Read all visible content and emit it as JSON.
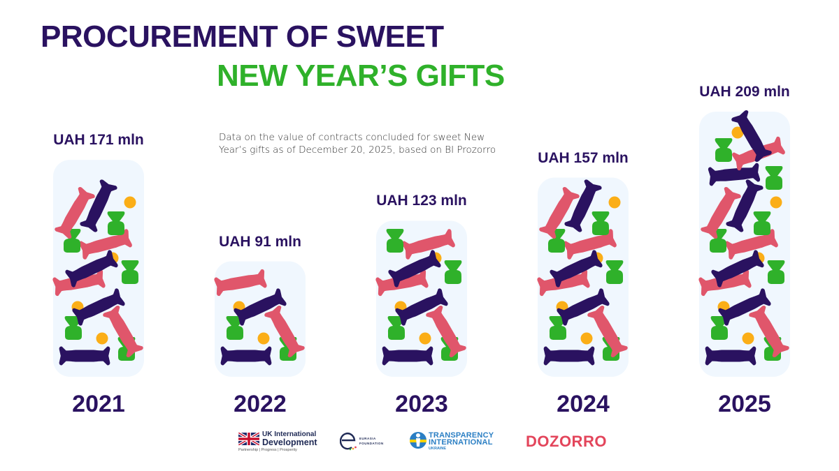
{
  "header": {
    "title_line1": "PROCUREMENT OF SWEET",
    "title_line2": "NEW YEAR’S GIFTS",
    "subtitle_line1": "Data on the value of contracts concluded for sweet New",
    "subtitle_line2": "Year’s gifts as of December 20, 2025, based on BI Prozorro"
  },
  "colors": {
    "title_primary": "#2a1260",
    "title_accent": "#2fb12a",
    "box_background": "#f0f7fe",
    "candy_purple": "#2a1260",
    "candy_pink": "#e0566b",
    "candy_green": "#2fb12a",
    "candy_orange": "#fbae17"
  },
  "chart_data": {
    "type": "bar",
    "title": "Procurement of sweet New Year’s gifts",
    "subtitle": "Data on the value of contracts concluded for sweet New Year’s gifts as of December 20, 2025, based on BI Prozorro",
    "xlabel": "",
    "ylabel": "UAH mln",
    "categories": [
      "2021",
      "2022",
      "2023",
      "2024",
      "2025"
    ],
    "values": [
      171,
      91,
      123,
      157,
      209
    ],
    "data_labels": [
      "UAH 171 mln",
      "UAH 91 mln",
      "UAH 123 mln",
      "UAH 157 mln",
      "UAH 209 mln"
    ],
    "ylim": [
      0,
      209
    ],
    "grid": false,
    "legend": "none"
  },
  "footer": {
    "logos": [
      {
        "name": "UK International Development",
        "line1": "UK International",
        "line2": "Development",
        "tagline": "Partnership   |   Progress   |   Prosperity"
      },
      {
        "name": "Eurasia Foundation",
        "line1": "EURASIA",
        "line2": "FOUNDATION"
      },
      {
        "name": "Transparency International Ukraine",
        "line1": "TRANSPARENCY",
        "line2": "INTERNATIONAL",
        "line3": "UKRAINE"
      },
      {
        "name": "Dozorro",
        "text": "DOZORRO"
      }
    ]
  }
}
